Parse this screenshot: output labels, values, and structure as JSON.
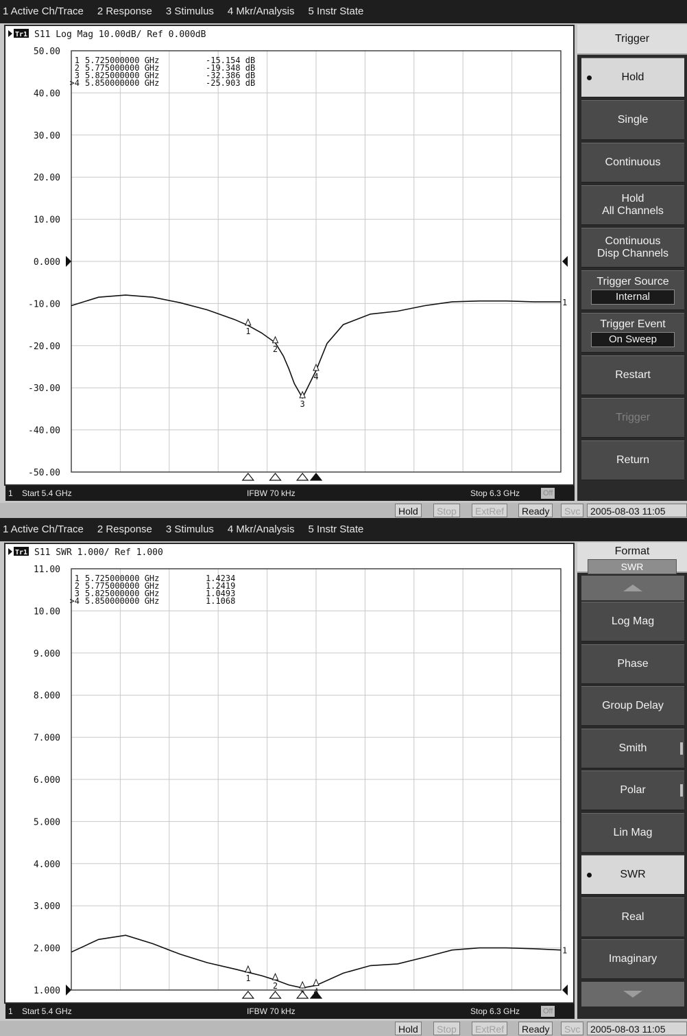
{
  "menu": [
    "1 Active Ch/Trace",
    "2 Response",
    "3 Stimulus",
    "4 Mkr/Analysis",
    "5 Instr State"
  ],
  "status": {
    "hold": "Hold",
    "stop": "Stop",
    "extref": "ExtRef",
    "ready": "Ready",
    "svc": "Svc",
    "datetime": "2005-08-03 11:05"
  },
  "top": {
    "trace_header": "S11 Log Mag 10.00dB/ Ref 0.000dB",
    "trace_badge": "Tr1",
    "footer": {
      "channel": "1",
      "start": "Start 5.4 GHz",
      "ifbw": "IFBW 70 kHz",
      "stop": "Stop 6.3 GHz",
      "off": "Off"
    },
    "softkeys": {
      "title": "Trigger",
      "items": [
        {
          "label": "Hold",
          "selected": true
        },
        {
          "label": "Single"
        },
        {
          "label": "Continuous"
        },
        {
          "label": "Hold",
          "label2": "All Channels"
        },
        {
          "label": "Continuous",
          "label2": "Disp Channels"
        },
        {
          "label": "Trigger Source",
          "value": "Internal"
        },
        {
          "label": "Trigger Event",
          "value": "On Sweep"
        },
        {
          "label": "Restart"
        },
        {
          "label": "Trigger",
          "disabled": true
        },
        {
          "label": "Return"
        }
      ]
    }
  },
  "bottom": {
    "trace_header": "S11 SWR 1.000/ Ref 1.000",
    "trace_badge": "Tr1",
    "footer": {
      "channel": "1",
      "start": "Start 5.4 GHz",
      "ifbw": "IFBW 70 kHz",
      "stop": "Stop 6.3 GHz",
      "off": "Off"
    },
    "softkeys": {
      "title": "Format",
      "title_value": "SWR",
      "items": [
        {
          "label": "Log Mag"
        },
        {
          "label": "Phase"
        },
        {
          "label": "Group Delay"
        },
        {
          "label": "Smith",
          "submenu": true
        },
        {
          "label": "Polar",
          "submenu": true
        },
        {
          "label": "Lin Mag"
        },
        {
          "label": "SWR",
          "selected": true
        },
        {
          "label": "Real"
        },
        {
          "label": "Imaginary"
        }
      ]
    }
  },
  "chart_data": [
    {
      "type": "line",
      "title": "S11 Log Mag 10.00dB/ Ref 0.000dB",
      "xlabel": "",
      "ylabel": "",
      "xlim": [
        5.4,
        6.3
      ],
      "ylim": [
        -50,
        50
      ],
      "grid": true,
      "y_ticks": [
        "50.00",
        "40.00",
        "30.00",
        "20.00",
        "10.00",
        "0.000",
        "-10.00",
        "-20.00",
        "-30.00",
        "-40.00",
        "-50.00"
      ],
      "ref_tick_index": 5,
      "series": [
        {
          "x": [
            5.4,
            5.45,
            5.5,
            5.55,
            5.6,
            5.65,
            5.7,
            5.725,
            5.75,
            5.775,
            5.79,
            5.8,
            5.81,
            5.825,
            5.835,
            5.85,
            5.87,
            5.9,
            5.95,
            6.0,
            6.05,
            6.1,
            6.15,
            6.2,
            6.25,
            6.3
          ],
          "y": [
            -10.5,
            -8.5,
            -8.0,
            -8.5,
            -9.8,
            -11.5,
            -13.8,
            -15.2,
            -17.0,
            -19.3,
            -22.5,
            -25.5,
            -29.0,
            -32.4,
            -29.8,
            -25.9,
            -19.5,
            -15.0,
            -12.5,
            -11.8,
            -10.5,
            -9.6,
            -9.4,
            -9.4,
            -9.6,
            -9.6
          ]
        }
      ],
      "markers": [
        {
          "id": "1",
          "freq": "5.725000000 GHz",
          "value": "-15.154 dB",
          "x": 5.725,
          "y": -15.154
        },
        {
          "id": "2",
          "freq": "5.775000000 GHz",
          "value": "-19.348 dB",
          "x": 5.775,
          "y": -19.348
        },
        {
          "id": "3",
          "freq": "5.825000000 GHz",
          "value": "-32.386 dB",
          "x": 5.825,
          "y": -32.386
        },
        {
          "id": "4",
          "freq": "5.850000000 GHz",
          "value": "-25.903 dB",
          "x": 5.85,
          "y": -25.903,
          "active": true
        }
      ]
    },
    {
      "type": "line",
      "title": "S11 SWR 1.000/ Ref 1.000",
      "xlabel": "",
      "ylabel": "",
      "xlim": [
        5.4,
        6.3
      ],
      "ylim": [
        1,
        11
      ],
      "grid": true,
      "y_ticks": [
        "11.00",
        "10.00",
        "9.000",
        "8.000",
        "7.000",
        "6.000",
        "5.000",
        "4.000",
        "3.000",
        "2.000",
        "1.000"
      ],
      "ref_tick_index": 10,
      "series": [
        {
          "x": [
            5.4,
            5.45,
            5.5,
            5.55,
            5.6,
            5.65,
            5.7,
            5.725,
            5.75,
            5.775,
            5.8,
            5.825,
            5.85,
            5.9,
            5.95,
            6.0,
            6.05,
            6.1,
            6.15,
            6.2,
            6.25,
            6.3
          ],
          "y": [
            1.9,
            2.2,
            2.3,
            2.1,
            1.85,
            1.65,
            1.5,
            1.42,
            1.34,
            1.24,
            1.12,
            1.05,
            1.11,
            1.4,
            1.58,
            1.62,
            1.78,
            1.95,
            2.0,
            2.0,
            1.98,
            1.95
          ]
        }
      ],
      "markers": [
        {
          "id": "1",
          "freq": "5.725000000 GHz",
          "value": "1.4234",
          "x": 5.725,
          "y": 1.4234
        },
        {
          "id": "2",
          "freq": "5.775000000 GHz",
          "value": "1.2419",
          "x": 5.775,
          "y": 1.2419
        },
        {
          "id": "3",
          "freq": "5.825000000 GHz",
          "value": "1.0493",
          "x": 5.825,
          "y": 1.0493
        },
        {
          "id": "4",
          "freq": "5.850000000 GHz",
          "value": "1.1068",
          "x": 5.85,
          "y": 1.1068,
          "active": true
        }
      ]
    }
  ]
}
